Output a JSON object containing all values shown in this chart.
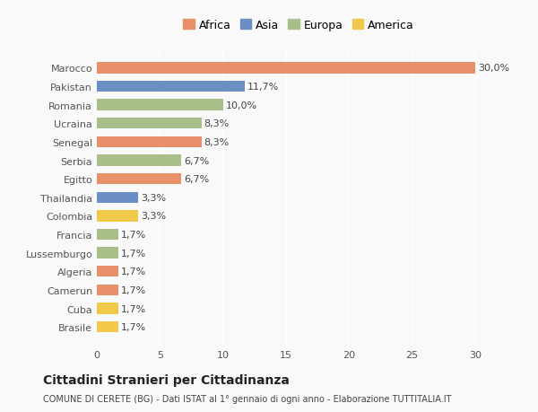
{
  "categories": [
    "Brasile",
    "Cuba",
    "Camerun",
    "Algeria",
    "Lussemburgo",
    "Francia",
    "Colombia",
    "Thailandia",
    "Egitto",
    "Serbia",
    "Senegal",
    "Ucraina",
    "Romania",
    "Pakistan",
    "Marocco"
  ],
  "values": [
    1.7,
    1.7,
    1.7,
    1.7,
    1.7,
    1.7,
    3.3,
    3.3,
    6.7,
    6.7,
    8.3,
    8.3,
    10.0,
    11.7,
    30.0
  ],
  "colors": [
    "#f0c84a",
    "#f0c84a",
    "#e8906a",
    "#e8906a",
    "#a8bf8a",
    "#a8bf8a",
    "#f0c84a",
    "#6b8fc4",
    "#e8906a",
    "#a8bf8a",
    "#e8906a",
    "#a8bf8a",
    "#a8bf8a",
    "#6b8fc4",
    "#e8906a"
  ],
  "labels": [
    "1,7%",
    "1,7%",
    "1,7%",
    "1,7%",
    "1,7%",
    "1,7%",
    "3,3%",
    "3,3%",
    "6,7%",
    "6,7%",
    "8,3%",
    "8,3%",
    "10,0%",
    "11,7%",
    "30,0%"
  ],
  "legend": [
    {
      "label": "Africa",
      "color": "#e8906a"
    },
    {
      "label": "Asia",
      "color": "#6b8fc4"
    },
    {
      "label": "Europa",
      "color": "#a8bf8a"
    },
    {
      "label": "America",
      "color": "#f0c84a"
    }
  ],
  "xlim": [
    0,
    32
  ],
  "xticks": [
    0,
    5,
    10,
    15,
    20,
    25,
    30
  ],
  "title1": "Cittadini Stranieri per Cittadinanza",
  "title2": "COMUNE DI CERETE (BG) - Dati ISTAT al 1° gennaio di ogni anno - Elaborazione TUTTITALIA.IT",
  "background_color": "#f9f9f9",
  "bar_height": 0.6
}
